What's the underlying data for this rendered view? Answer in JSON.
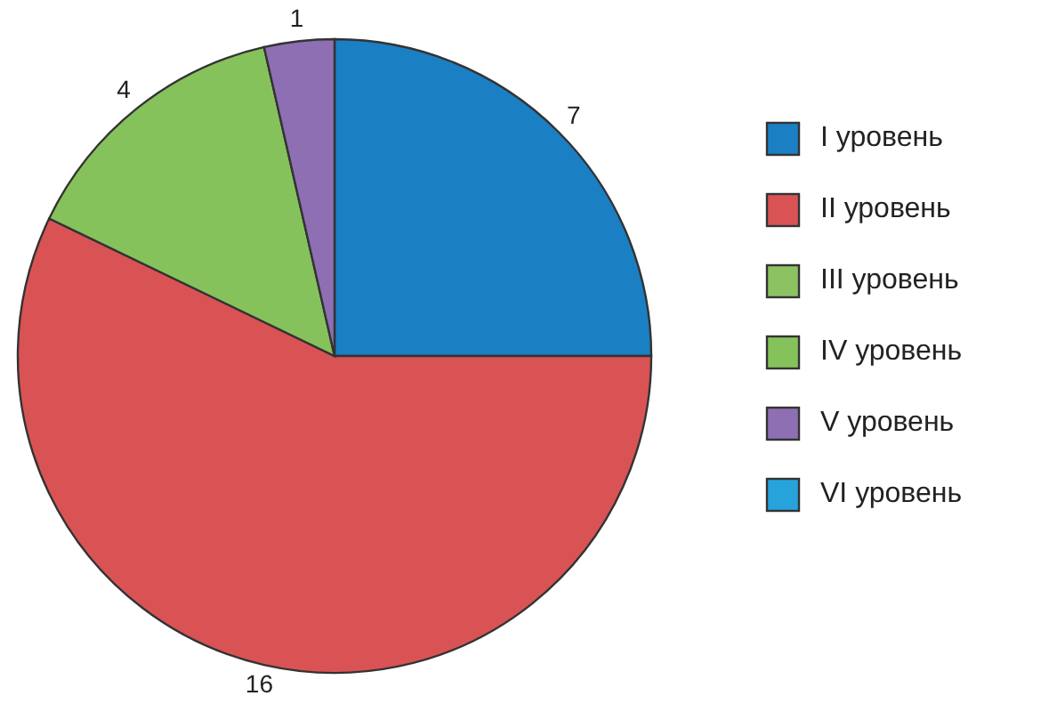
{
  "chart_data": {
    "type": "pie",
    "categories": [
      "I уровень",
      "II уровень",
      "III уровень",
      "IV уровень",
      "V уровень",
      "VI уровень"
    ],
    "values": [
      7,
      16,
      0,
      4,
      1,
      0
    ],
    "colors": [
      "#1b7fc4",
      "#d95355",
      "#8dc262",
      "#86c25c",
      "#8e6fb3",
      "#27a3dc"
    ],
    "value_labels": [
      "7",
      "16",
      null,
      "4",
      "1",
      null
    ],
    "legend": "right"
  }
}
